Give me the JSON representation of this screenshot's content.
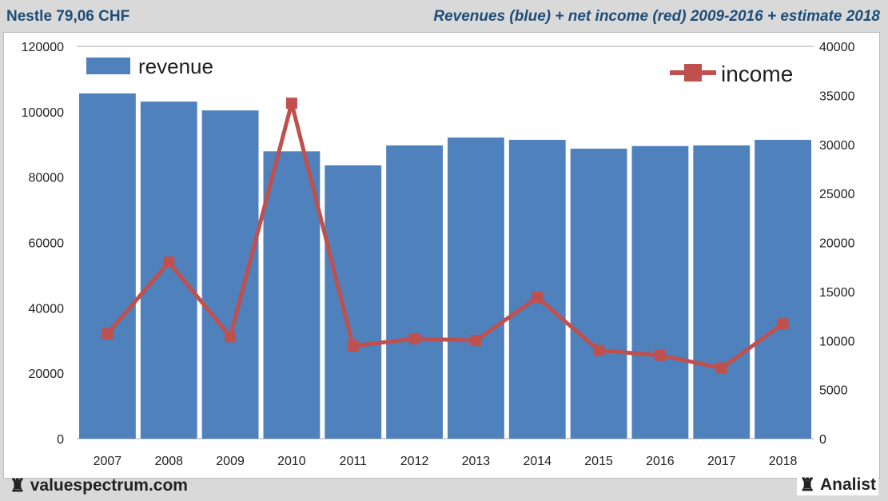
{
  "header": {
    "left_title": "Nestle 79,06 CHF",
    "right_title": "Revenues (blue) + net income (red) 2009-2016 + estimate 2018"
  },
  "footer": {
    "left": "valuespectrum.com",
    "right": "Analist",
    "icon": "rook-icon"
  },
  "chart_data": {
    "type": "bar",
    "categories": [
      "2007",
      "2008",
      "2009",
      "2010",
      "2011",
      "2012",
      "2013",
      "2014",
      "2015",
      "2016",
      "2017",
      "2018"
    ],
    "series": [
      {
        "name": "revenue",
        "type": "bar",
        "axis": "left",
        "color": "#4f81bd",
        "values": [
          105600,
          103100,
          100400,
          87900,
          83600,
          89700,
          92100,
          91400,
          88700,
          89500,
          89700,
          91400
        ]
      },
      {
        "name": "income",
        "type": "line",
        "axis": "right",
        "color": "#c0504d",
        "values": [
          10700,
          18000,
          10400,
          34200,
          9450,
          10200,
          10000,
          14400,
          9000,
          8500,
          7200,
          11700
        ]
      }
    ],
    "y_left": {
      "ticks": [
        "0",
        "20000",
        "40000",
        "60000",
        "80000",
        "100000",
        "120000"
      ],
      "ylim": [
        0,
        120000
      ]
    },
    "y_right": {
      "ticks": [
        "0",
        "5000",
        "10000",
        "15000",
        "20000",
        "25000",
        "30000",
        "35000",
        "40000"
      ],
      "ylim": [
        0,
        40000
      ]
    },
    "legend": [
      {
        "label": "revenue",
        "placement": "top-left"
      },
      {
        "label": "income",
        "placement": "top-right"
      }
    ],
    "grid": false
  }
}
